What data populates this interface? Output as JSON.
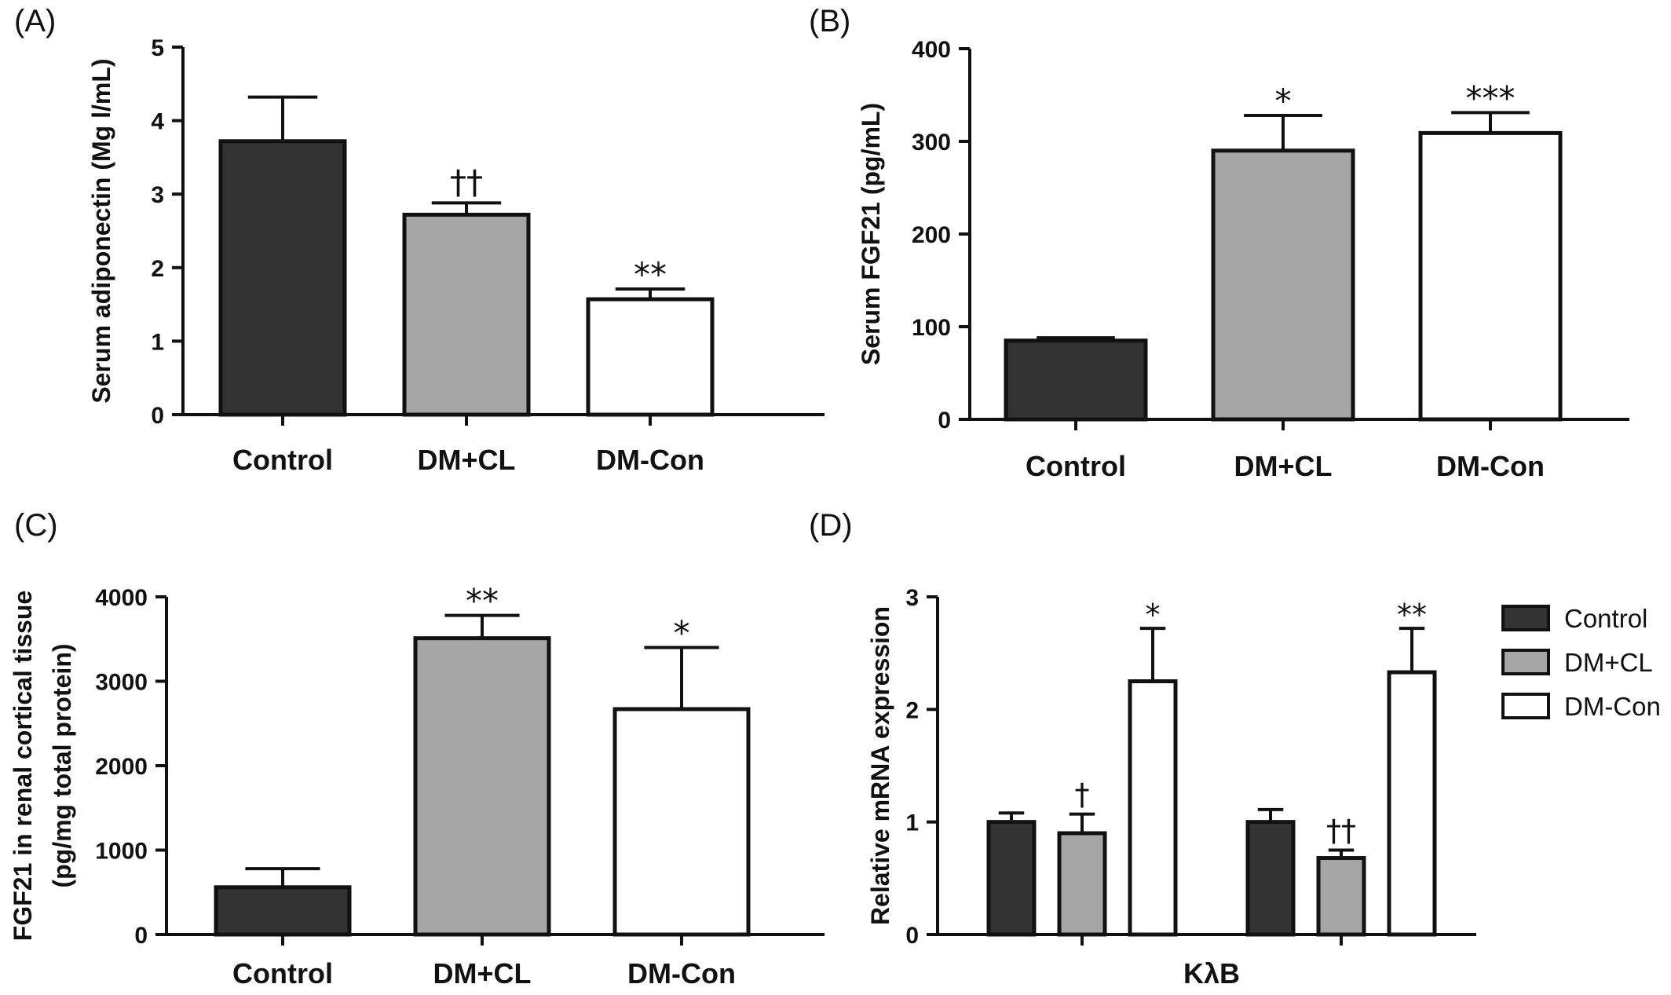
{
  "colors": {
    "Control": "#333333",
    "DM+CL": "#a6a6a6",
    "DM-Con": "#ffffff",
    "stroke": "#111111"
  },
  "legend": {
    "position": "right",
    "entries": [
      "Control",
      "DM+CL",
      "DM-Con"
    ]
  },
  "chart_data": [
    {
      "type": "bar",
      "panel_label": "(A)",
      "categories": [
        "Control",
        "DM+CL",
        "DM-Con"
      ],
      "values": [
        3.72,
        2.72,
        1.57
      ],
      "errors": [
        0.6,
        0.16,
        0.14
      ],
      "significance": [
        "",
        "††",
        "**"
      ],
      "ylabel": "Serum adiponectin (Mg l/mL)",
      "ylim": [
        0,
        5
      ],
      "yticks": [
        0,
        1,
        2,
        3,
        4,
        5
      ]
    },
    {
      "type": "bar",
      "panel_label": "(B)",
      "categories": [
        "Control",
        "DM+CL",
        "DM-Con"
      ],
      "values": [
        85,
        290,
        309
      ],
      "errors": [
        3,
        38,
        22
      ],
      "significance": [
        "",
        "*",
        "***"
      ],
      "ylabel": "Serum FGF21 (pg/mL)",
      "ylim": [
        0,
        400
      ],
      "yticks": [
        0,
        100,
        200,
        300,
        400
      ]
    },
    {
      "type": "bar",
      "panel_label": "(C)",
      "categories": [
        "Control",
        "DM+CL",
        "DM-Con"
      ],
      "values": [
        560,
        3510,
        2670
      ],
      "errors": [
        220,
        270,
        730
      ],
      "significance": [
        "",
        "**",
        "*"
      ],
      "ylabel": "FGF21 in renal cortical tissue",
      "ylabel2": "(pg/mg total protein)",
      "ylim": [
        0,
        4000
      ],
      "yticks": [
        0,
        1000,
        2000,
        3000,
        4000
      ]
    },
    {
      "type": "bar",
      "panel_label": "(D)",
      "xlabel": "KλB",
      "ylabel": "Relative mRNA expression",
      "ylim": [
        0,
        3
      ],
      "yticks": [
        0,
        1,
        2,
        3
      ],
      "groups": 2,
      "series": [
        {
          "name": "Control",
          "values": [
            1.0,
            1.0
          ],
          "errors": [
            0.08,
            0.11
          ],
          "significance": [
            "",
            ""
          ]
        },
        {
          "name": "DM+CL",
          "values": [
            0.9,
            0.68
          ],
          "errors": [
            0.17,
            0.07
          ],
          "significance": [
            "†",
            "††"
          ]
        },
        {
          "name": "DM-Con",
          "values": [
            2.25,
            2.33
          ],
          "errors": [
            0.47,
            0.39
          ],
          "significance": [
            "*",
            "**"
          ]
        }
      ]
    }
  ]
}
